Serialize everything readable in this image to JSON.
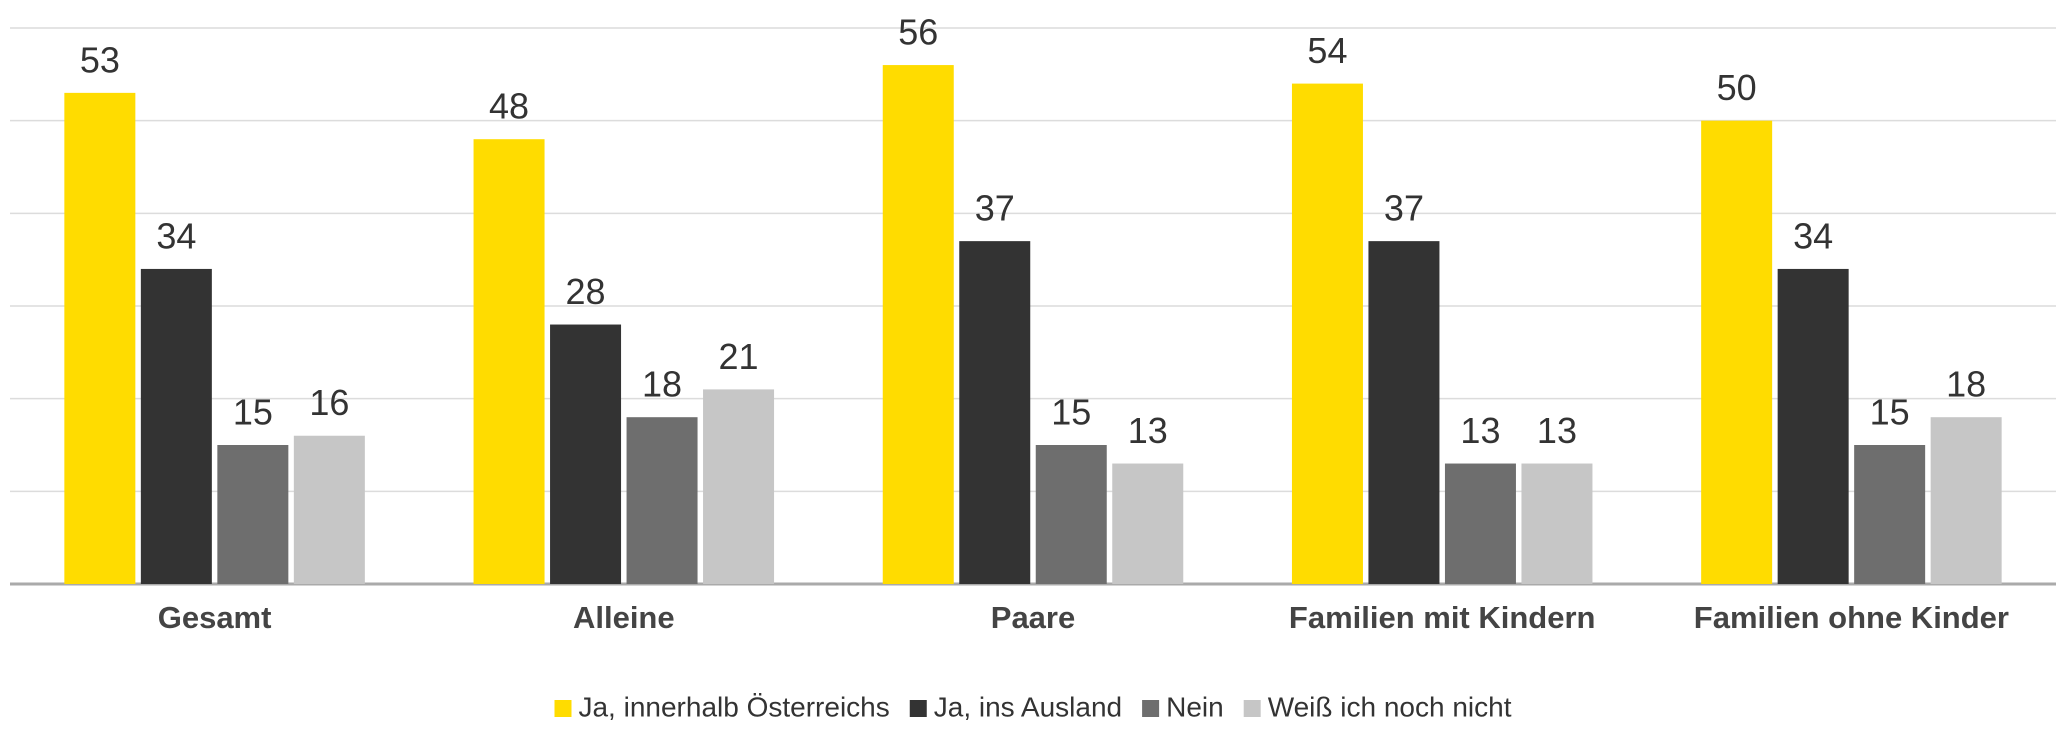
{
  "chart_data": {
    "type": "bar",
    "categories": [
      "Gesamt",
      "Alleine",
      "Paare",
      "Familien mit Kindern",
      "Familien ohne Kinder"
    ],
    "series": [
      {
        "name": "Ja, innerhalb Österreichs",
        "color": "#ffdc00",
        "values": [
          53,
          48,
          56,
          54,
          50
        ]
      },
      {
        "name": "Ja, ins Ausland",
        "color": "#333333",
        "values": [
          34,
          28,
          37,
          37,
          34
        ]
      },
      {
        "name": "Nein",
        "color": "#6e6e6e",
        "values": [
          15,
          18,
          15,
          13,
          15
        ]
      },
      {
        "name": "Weiß ich noch nicht",
        "color": "#c6c6c6",
        "values": [
          16,
          21,
          13,
          13,
          18
        ]
      }
    ],
    "ylim": [
      0,
      60
    ],
    "yticks": [
      0,
      10,
      20,
      30,
      40,
      50,
      60
    ],
    "grid": true,
    "legend": "bottom"
  }
}
